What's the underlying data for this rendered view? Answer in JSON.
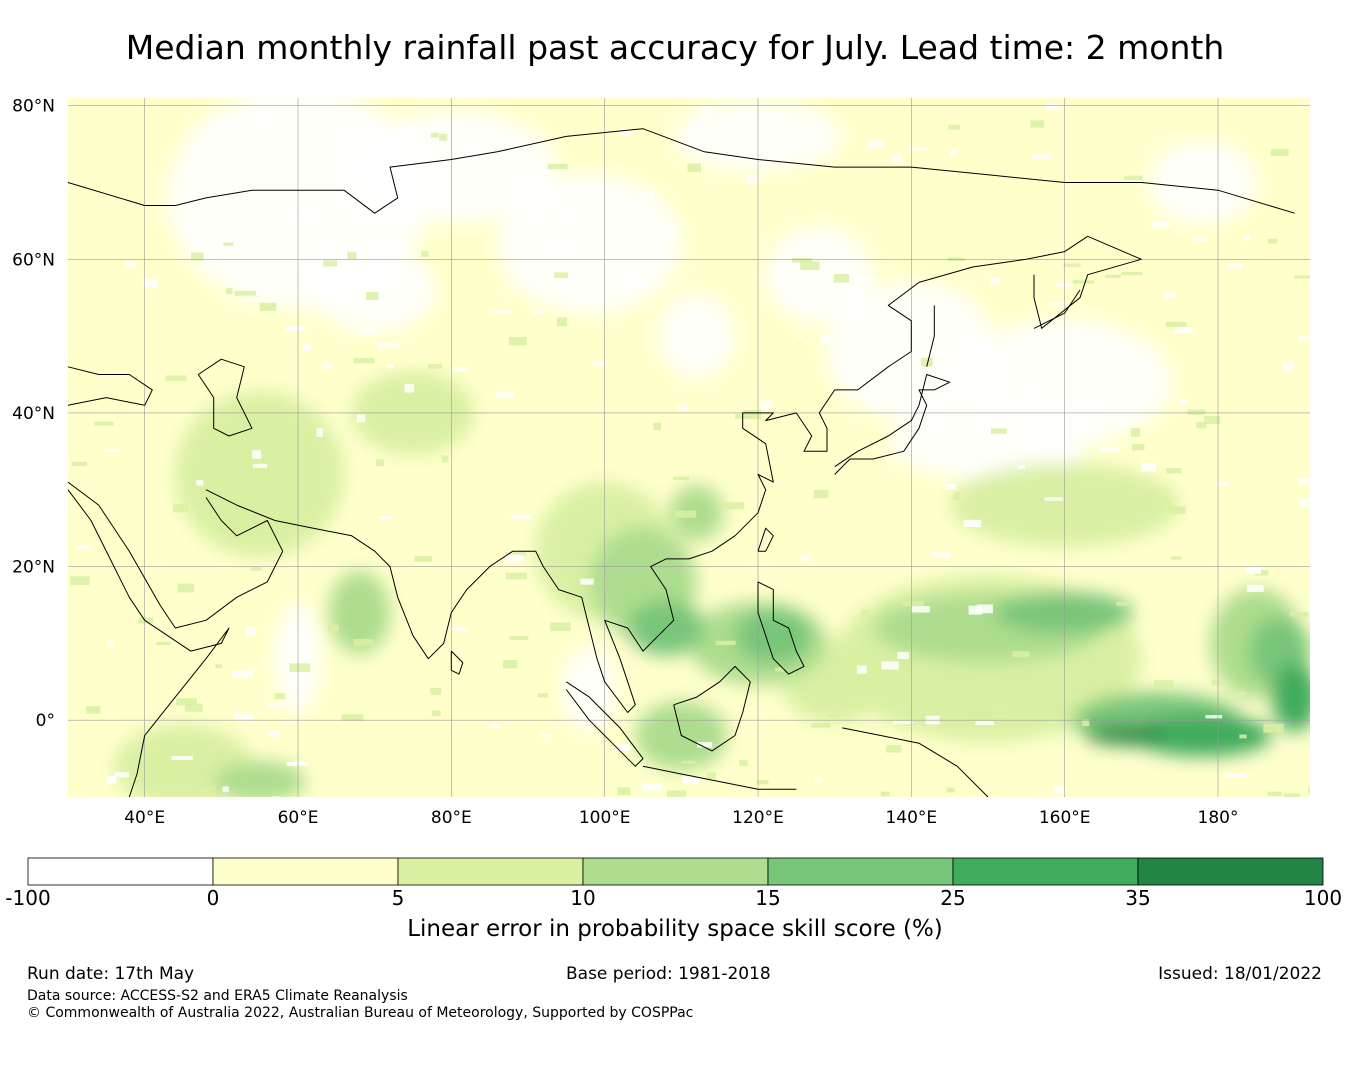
{
  "title": "Median monthly rainfall past accuracy for July. Lead time: 2 month",
  "map": {
    "lon_range": [
      30,
      192
    ],
    "lat_range": [
      -10,
      81
    ],
    "lat_ticks": [
      {
        "value": 80,
        "label": "80°N"
      },
      {
        "value": 60,
        "label": "60°N"
      },
      {
        "value": 40,
        "label": "40°N"
      },
      {
        "value": 20,
        "label": "20°N"
      },
      {
        "value": 0,
        "label": "0°"
      }
    ],
    "lon_ticks": [
      {
        "value": 40,
        "label": "40°E"
      },
      {
        "value": 60,
        "label": "60°E"
      },
      {
        "value": 80,
        "label": "80°E"
      },
      {
        "value": 100,
        "label": "100°E"
      },
      {
        "value": 120,
        "label": "120°E"
      },
      {
        "value": 140,
        "label": "140°E"
      },
      {
        "value": 160,
        "label": "160°E"
      },
      {
        "value": 180,
        "label": "180°"
      }
    ]
  },
  "colorbar": {
    "title": "Linear error in probability space skill score (%)",
    "boundaries": [
      "-100",
      "0",
      "5",
      "10",
      "15",
      "25",
      "35",
      "100"
    ],
    "colors": [
      "#ffffff",
      "#ffffcc",
      "#d9f0a3",
      "#addd8e",
      "#78c679",
      "#41ab5d",
      "#238443"
    ]
  },
  "footer": {
    "run_date": "Run date: 17th May",
    "base_period": "Base period: 1981-2018",
    "issued": "Issued: 18/01/2022",
    "data_source": "Data source: ACCESS-S2 and ERA5 Climate Reanalysis",
    "copyright": "© Commonwealth of Australia 2022, Australian Bureau of Meteorology, Supported by COSPPac"
  }
}
